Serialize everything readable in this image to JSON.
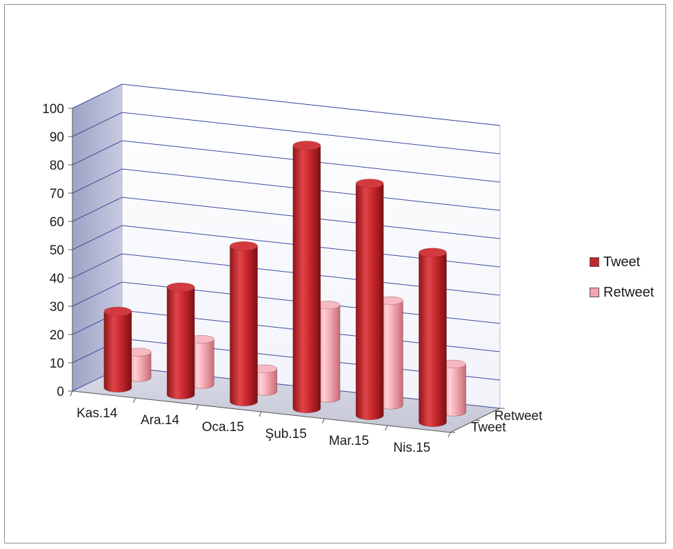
{
  "chart_data": {
    "type": "bar",
    "style": "3d-cylinder",
    "title": "",
    "xlabel": "",
    "ylabel": "",
    "ylim": [
      0,
      100
    ],
    "yticks": [
      0,
      10,
      20,
      30,
      40,
      50,
      60,
      70,
      80,
      90,
      100
    ],
    "grid": true,
    "legend_placement": "right",
    "categories": [
      "Kas.14",
      "Ara.14",
      "Oca.15",
      "Şub.15",
      "Mar.15",
      "Nis.15"
    ],
    "series": [
      {
        "name": "Tweet",
        "values": [
          27,
          38,
          55,
          93,
          82,
          60
        ],
        "color": "#c0272d"
      },
      {
        "name": "Retweet",
        "values": [
          9,
          16,
          8,
          33,
          37,
          17
        ],
        "color": "#f2a3ad"
      }
    ],
    "depth_labels": [
      "Retweet",
      "Tweet"
    ]
  }
}
